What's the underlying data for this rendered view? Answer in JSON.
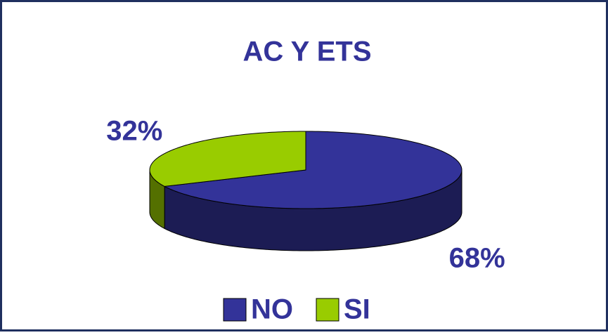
{
  "chart_data": {
    "type": "pie",
    "title": "AC Y ETS",
    "categories": [
      "NO",
      "SI"
    ],
    "values": [
      68,
      32
    ],
    "value_labels": [
      "68%",
      "32%"
    ],
    "colors": [
      "#333399",
      "#99cc00"
    ],
    "legend": "bottom",
    "style": "3d"
  }
}
